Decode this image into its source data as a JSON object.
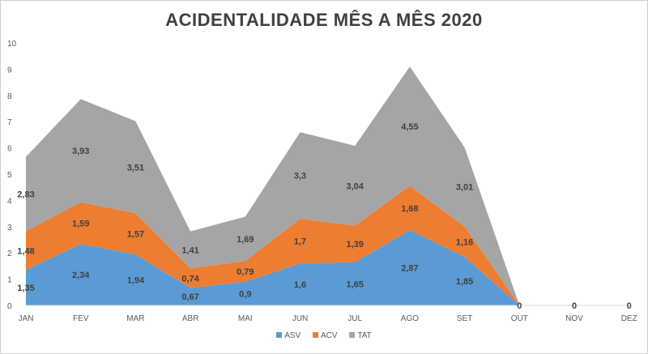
{
  "chart_data": {
    "type": "area",
    "stacked": true,
    "title": "ACIDENTALIDADE MÊS A MÊS 2020",
    "categories": [
      "JAN",
      "FEV",
      "MAR",
      "ABR",
      "MAI",
      "JUN",
      "JUL",
      "AGO",
      "SET",
      "OUT",
      "NOV",
      "DEZ"
    ],
    "ylim": [
      0,
      10
    ],
    "yticks": [
      "0",
      "1",
      "2",
      "3",
      "4",
      "5",
      "6",
      "7",
      "8",
      "9",
      "10"
    ],
    "grid": false,
    "legend_position": "bottom",
    "series": [
      {
        "name": "ASV",
        "color": "#5B9BD5",
        "values": [
          1.35,
          2.34,
          1.94,
          0.67,
          0.9,
          1.6,
          1.65,
          2.87,
          1.85,
          0,
          null,
          null
        ],
        "labels": [
          "1,35",
          "2,34",
          "1,94",
          "0,67",
          "0,9",
          "1,6",
          "1,65",
          "2,87",
          "1,85",
          "0",
          "0",
          "0"
        ]
      },
      {
        "name": "ACV",
        "color": "#ED7D31",
        "values": [
          1.48,
          1.59,
          1.57,
          0.74,
          0.79,
          1.7,
          1.39,
          1.68,
          1.16,
          0,
          null,
          null
        ],
        "labels": [
          "1,48",
          "1,59",
          "1,57",
          "0,74",
          "0,79",
          "1,7",
          "1,39",
          "1,68",
          "1,16",
          "",
          "",
          ""
        ]
      },
      {
        "name": "TAT",
        "color": "#A5A5A5",
        "values": [
          2.83,
          3.93,
          3.51,
          1.41,
          1.69,
          3.3,
          3.04,
          4.55,
          3.01,
          0,
          null,
          null
        ],
        "labels": [
          "2,83",
          "3,93",
          "3,51",
          "1,41",
          "1,69",
          "3,3",
          "3,04",
          "4,55",
          "3,01",
          "",
          "",
          ""
        ]
      }
    ]
  }
}
